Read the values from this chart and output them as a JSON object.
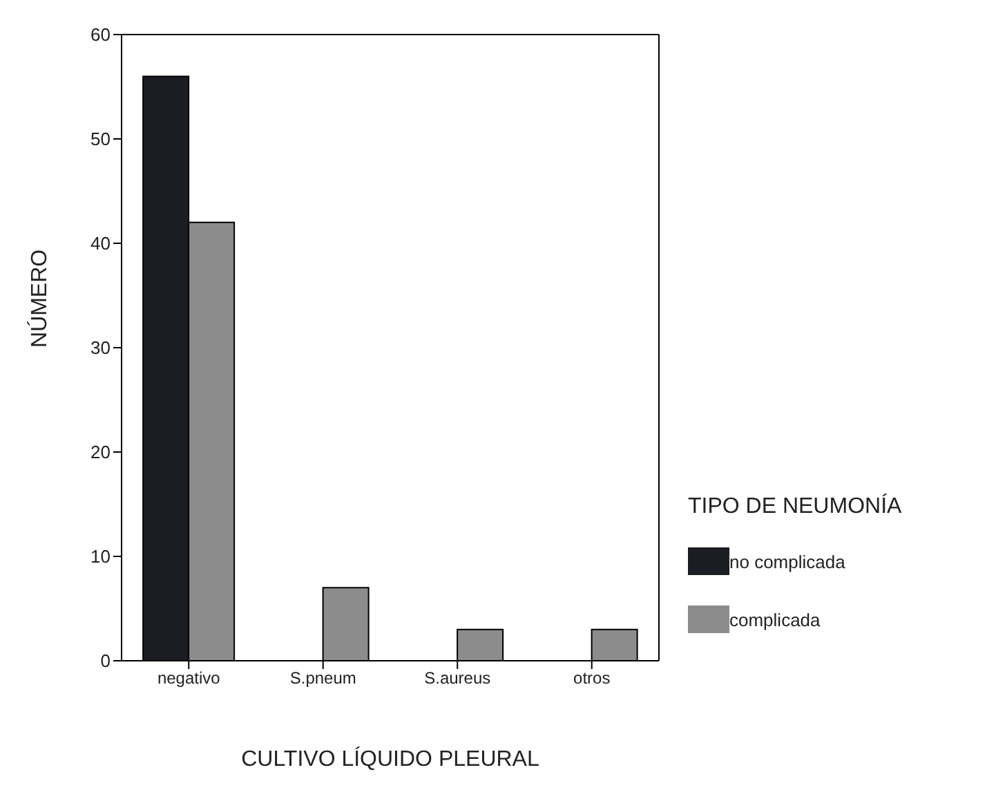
{
  "chart_data": {
    "type": "bar",
    "xlabel": "CULTIVO LÍQUIDO PLEURAL",
    "ylabel": "NÚMERO",
    "legend_title": "TIPO DE NEUMONÍA",
    "categories": [
      "negativo",
      "S.pneum",
      "S.aureus",
      "otros"
    ],
    "series": [
      {
        "name": "no complicada",
        "color": "#1c1c24",
        "values": [
          56,
          0,
          0,
          0
        ]
      },
      {
        "name": "complicada",
        "color": "#8c8c8c",
        "values": [
          42,
          7,
          3,
          3
        ]
      }
    ],
    "ylim": [
      0,
      60
    ],
    "yticks": [
      0,
      10,
      20,
      30,
      40,
      50,
      60
    ],
    "legend": "right"
  }
}
